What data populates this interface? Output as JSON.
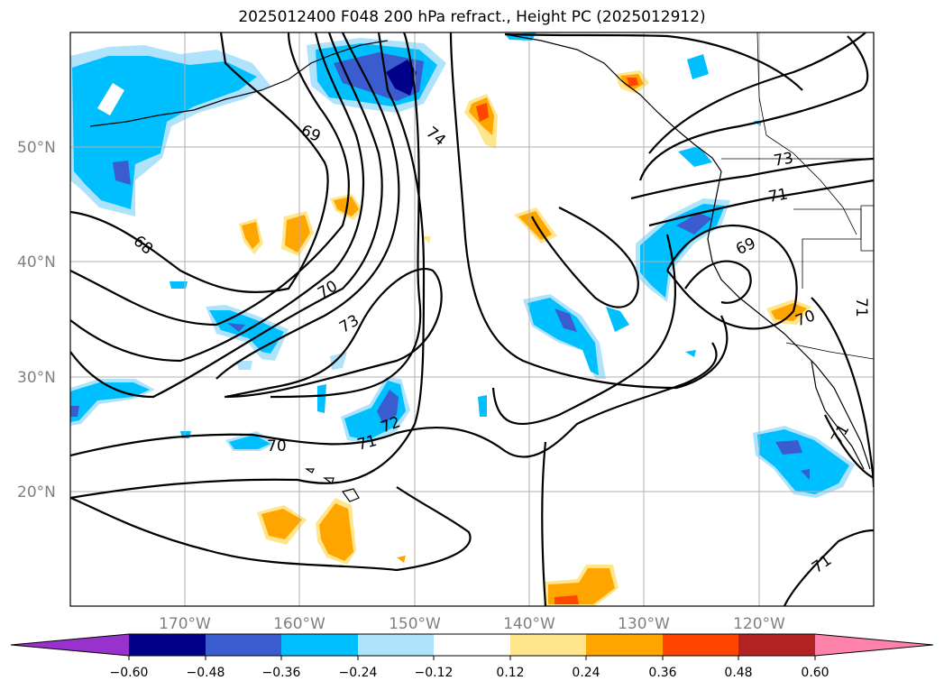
{
  "title": "2025012400 F048 200 hPa refract., Height PC (2025012912)",
  "lat_labels": [
    "50°N",
    "40°N",
    "30°N",
    "20°N"
  ],
  "lon_labels": [
    "170°W",
    "160°W",
    "150°W",
    "140°W",
    "130°W",
    "120°W"
  ],
  "contour_labels": [
    "69",
    "74",
    "73",
    "71",
    "68",
    "70",
    "73",
    "69",
    "70",
    "71",
    "72",
    "71",
    "70",
    "71",
    "71"
  ],
  "colorbar": {
    "ticks": [
      "−0.60",
      "−0.48",
      "−0.36",
      "−0.24",
      "−0.12",
      "0.12",
      "0.24",
      "0.36",
      "0.48",
      "0.60"
    ],
    "colors": [
      "#9932cc",
      "#00008b",
      "#3a5ccf",
      "#00bfff",
      "#aee3fb",
      "#ffffff",
      "#ffe68c",
      "#ffa500",
      "#ff4500",
      "#b22222",
      "#ff82ab"
    ]
  },
  "colors": {
    "grid": "#b0b0b0",
    "axis_label": "#808080"
  }
}
